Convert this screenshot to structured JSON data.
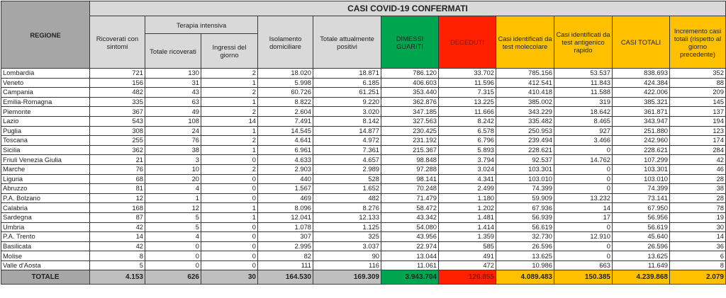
{
  "title": "CASI COVID-19 CONFERMATI",
  "headers": {
    "regione": "REGIONE",
    "ricoverati": "Ricoverati con sintomi",
    "terapia": "Terapia intensiva",
    "totale_ricoverati": "Totale ricoverati",
    "ingressi": "Ingressi del giorno",
    "isolamento": "Isolamento domiciliare",
    "positivi": "Totale attualmente positivi",
    "dimessi": "DIMESSI GUARITI",
    "deceduti": "DECEDUTI",
    "molecolare": "Casi identificati da test molecolare",
    "antigenico": "Casi identificati da test antigenico rapido",
    "casi_totali": "CASI TOTALI",
    "incremento": "Incremento casi totali (rispetto al giorno precedente)"
  },
  "colors": {
    "header_gray": "#d9d9d9",
    "region_gray": "#a6a6a6",
    "green": "#00a550",
    "red": "#ff2000",
    "yellow": "#ffc000"
  },
  "rows": [
    [
      "Lombardia",
      "721",
      "130",
      "2",
      "18.020",
      "18.871",
      "786.120",
      "33.702",
      "785.156",
      "53.537",
      "838.693",
      "352"
    ],
    [
      "Veneto",
      "156",
      "31",
      "1",
      "5.998",
      "6.185",
      "406.603",
      "11.596",
      "412.541",
      "11.843",
      "424.384",
      "88"
    ],
    [
      "Campania",
      "482",
      "43",
      "2",
      "60.726",
      "61.251",
      "353.440",
      "7.315",
      "410.418",
      "11.588",
      "422.006",
      "209"
    ],
    [
      "Emilia-Romagna",
      "335",
      "63",
      "1",
      "8.822",
      "9.220",
      "362.876",
      "13.225",
      "385.002",
      "319",
      "385.321",
      "145"
    ],
    [
      "Piemonte",
      "367",
      "49",
      "2",
      "2.604",
      "3.020",
      "347.185",
      "11.666",
      "343.229",
      "18.642",
      "361.871",
      "137"
    ],
    [
      "Lazio",
      "543",
      "108",
      "14",
      "7.491",
      "8.142",
      "327.563",
      "8.242",
      "335.482",
      "8.465",
      "343.947",
      "194"
    ],
    [
      "Puglia",
      "308",
      "24",
      "1",
      "14.545",
      "14.877",
      "230.425",
      "6.578",
      "250.953",
      "927",
      "251.880",
      "123"
    ],
    [
      "Toscana",
      "255",
      "76",
      "2",
      "4.641",
      "4.972",
      "231.192",
      "6.796",
      "239.494",
      "3.466",
      "242.960",
      "174"
    ],
    [
      "Sicilia",
      "362",
      "38",
      "1",
      "6.961",
      "7.361",
      "215.367",
      "5.893",
      "228.621",
      "0",
      "228.621",
      "284"
    ],
    [
      "Friuli Venezia Giulia",
      "21",
      "3",
      "0",
      "4.633",
      "4.657",
      "98.848",
      "3.794",
      "92.537",
      "14.762",
      "107.299",
      "42"
    ],
    [
      "Marche",
      "76",
      "10",
      "2",
      "2.903",
      "2.989",
      "97.288",
      "3.024",
      "103.301",
      "0",
      "103.301",
      "46"
    ],
    [
      "Liguria",
      "68",
      "20",
      "0",
      "440",
      "528",
      "98.141",
      "4.341",
      "103.010",
      "0",
      "103.010",
      "28"
    ],
    [
      "Abruzzo",
      "81",
      "4",
      "0",
      "1.567",
      "1.652",
      "70.248",
      "2.499",
      "74.399",
      "0",
      "74.399",
      "38"
    ],
    [
      "P.A. Bolzano",
      "12",
      "1",
      "0",
      "469",
      "482",
      "71.479",
      "1.180",
      "59.909",
      "13.232",
      "73.141",
      "28"
    ],
    [
      "Calabria",
      "168",
      "12",
      "1",
      "8.096",
      "8.276",
      "58.472",
      "1.202",
      "67.936",
      "14",
      "67.950",
      "78"
    ],
    [
      "Sardegna",
      "87",
      "5",
      "1",
      "12.041",
      "12.133",
      "43.342",
      "1.481",
      "56.939",
      "17",
      "56.956",
      "19"
    ],
    [
      "Umbria",
      "42",
      "5",
      "0",
      "1.078",
      "1.125",
      "54.080",
      "1.414",
      "56.619",
      "0",
      "56.619",
      "30"
    ],
    [
      "P.A. Trento",
      "14",
      "4",
      "0",
      "307",
      "325",
      "43.956",
      "1.359",
      "32.730",
      "12.910",
      "45.640",
      "14"
    ],
    [
      "Basilicata",
      "42",
      "0",
      "0",
      "2.995",
      "3.037",
      "22.974",
      "585",
      "26.596",
      "0",
      "26.596",
      "36"
    ],
    [
      "Molise",
      "8",
      "0",
      "0",
      "82",
      "90",
      "13.044",
      "491",
      "13.625",
      "0",
      "13.625",
      "6"
    ],
    [
      "Valle d'Aosta",
      "5",
      "0",
      "0",
      "111",
      "116",
      "11.061",
      "472",
      "10.986",
      "663",
      "11.649",
      "8"
    ]
  ],
  "total": [
    "TOTALE",
    "4.153",
    "626",
    "30",
    "164.530",
    "169.309",
    "3.943.704",
    "126.855",
    "4.089.483",
    "150.385",
    "4.239.868",
    "2.079"
  ]
}
